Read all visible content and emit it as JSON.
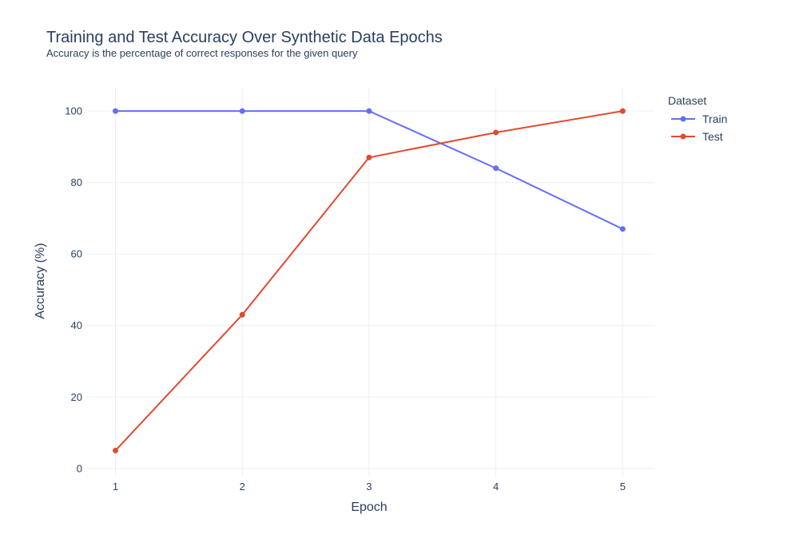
{
  "chart_data": {
    "type": "line",
    "title": "Training and Test Accuracy Over Synthetic Data Epochs",
    "subtitle": "Accuracy is the percentage of correct responses for the given query",
    "xlabel": "Epoch",
    "ylabel": "Accuracy (%)",
    "x": [
      1,
      2,
      3,
      4,
      5
    ],
    "xlim": [
      0.77,
      5.25
    ],
    "ylim": [
      -2.5,
      106.5
    ],
    "xticks": [
      1,
      2,
      3,
      4,
      5
    ],
    "yticks": [
      0,
      20,
      40,
      60,
      80,
      100
    ],
    "grid": true,
    "legend_title": "Dataset",
    "legend_position": "top-right",
    "series": [
      {
        "name": "Train",
        "color": "#636efa",
        "values": [
          100,
          100,
          100,
          84,
          67
        ]
      },
      {
        "name": "Test",
        "color": "#e04a2f",
        "values": [
          5,
          43,
          87,
          94,
          100
        ]
      }
    ]
  }
}
